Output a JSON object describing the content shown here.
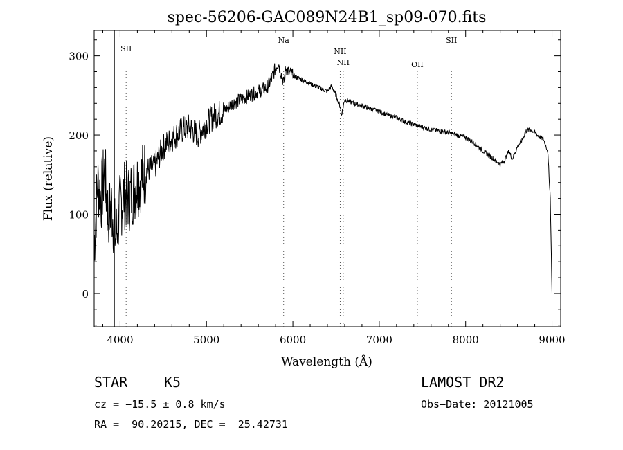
{
  "chart_data": {
    "type": "line",
    "title": "spec-56206-GAC089N24B1_sp09-070.fits",
    "xlabel": "Wavelength (Å)",
    "ylabel": "Flux (relative)",
    "xlim": [
      3700,
      9100
    ],
    "ylim": [
      -42,
      332
    ],
    "xticks": [
      4000,
      5000,
      6000,
      7000,
      8000,
      9000
    ],
    "yticks": [
      0,
      100,
      200,
      300
    ],
    "grid": false,
    "legend": "none",
    "vertical_lines": [
      {
        "x": 3934,
        "style": "solid"
      },
      {
        "x": 4070,
        "style": "dotted",
        "label": "SII"
      },
      {
        "x": 5893,
        "style": "dotted",
        "label": "Na"
      },
      {
        "x": 6548,
        "style": "dotted",
        "label": "NII"
      },
      {
        "x": 6583,
        "style": "dotted",
        "label": "NII"
      },
      {
        "x": 7441,
        "style": "dotted",
        "label": "OII"
      },
      {
        "x": 7836,
        "style": "dotted",
        "label": "SII"
      }
    ],
    "series": [
      {
        "x": [
          3700,
          3740,
          3780,
          3820,
          3860,
          3900,
          3950,
          4000,
          4050,
          4100,
          4150,
          4200,
          4300,
          4400,
          4500,
          4600,
          4700,
          4800,
          4900,
          5000,
          5100,
          5200,
          5300,
          5400,
          5500,
          5600,
          5700,
          5750,
          5800,
          5830,
          5860,
          5893,
          5920,
          5950,
          6000,
          6100,
          6200,
          6300,
          6400,
          6450,
          6500,
          6550,
          6562,
          6600,
          6700,
          6800,
          6900,
          7000,
          7100,
          7200,
          7300,
          7400,
          7500,
          7600,
          7700,
          7800,
          7900,
          8000,
          8100,
          8200,
          8300,
          8400,
          8450,
          8500,
          8540,
          8600,
          8660,
          8700,
          8750,
          8800,
          8850,
          8900,
          8950,
          8980,
          9000
        ],
        "y": [
          60,
          140,
          120,
          155,
          100,
          110,
          70,
          110,
          125,
          120,
          130,
          140,
          155,
          160,
          185,
          195,
          205,
          210,
          200,
          215,
          225,
          230,
          240,
          245,
          250,
          255,
          260,
          270,
          285,
          292,
          280,
          265,
          285,
          280,
          275,
          270,
          265,
          260,
          255,
          262,
          250,
          235,
          225,
          245,
          240,
          237,
          233,
          230,
          225,
          222,
          217,
          213,
          210,
          207,
          205,
          203,
          200,
          197,
          190,
          180,
          172,
          163,
          168,
          180,
          170,
          185,
          195,
          205,
          207,
          203,
          198,
          195,
          180,
          120,
          0
        ]
      }
    ]
  },
  "info": {
    "object_class": "STAR",
    "subclass": "K5",
    "survey": "LAMOST DR2",
    "redshift": "cz = −15.5 ± 0.8 km/s",
    "obs_date": "Obs−Date: 20121005",
    "coords": "RA =  90.20215, DEC =  25.42731"
  }
}
